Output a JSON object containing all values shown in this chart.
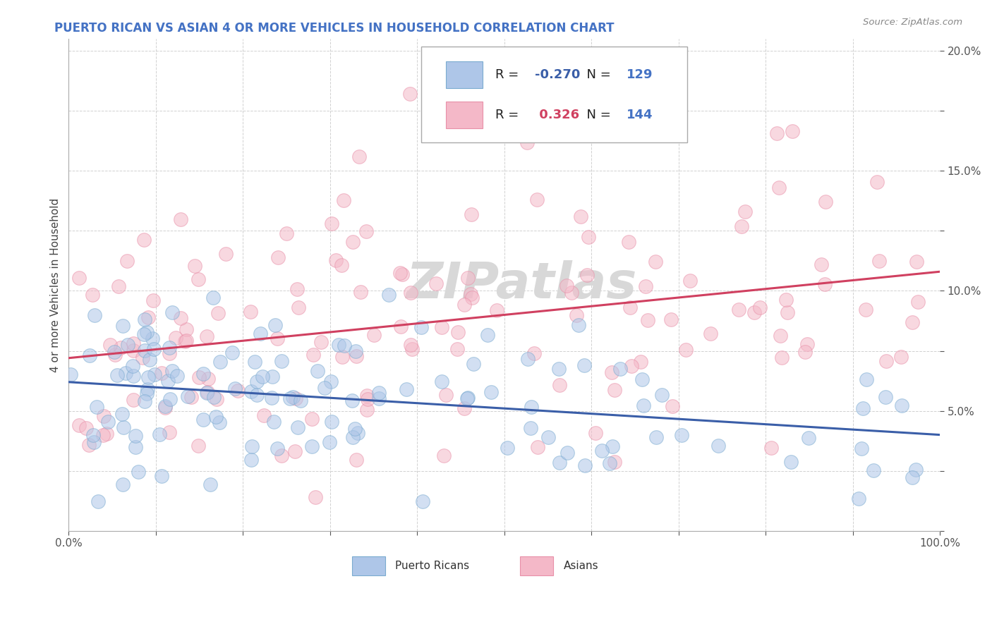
{
  "title": "PUERTO RICAN VS ASIAN 4 OR MORE VEHICLES IN HOUSEHOLD CORRELATION CHART",
  "source": "Source: ZipAtlas.com",
  "ylabel": "4 or more Vehicles in Household",
  "xlim": [
    0.0,
    1.0
  ],
  "ylim": [
    0.0,
    0.205
  ],
  "blue_R": -0.27,
  "blue_N": 129,
  "pink_R": 0.326,
  "pink_N": 144,
  "blue_face_color": "#aec6e8",
  "pink_face_color": "#f4b8c8",
  "blue_edge_color": "#7aabd0",
  "pink_edge_color": "#e890a8",
  "blue_line_color": "#3a5ea8",
  "pink_line_color": "#d04060",
  "title_color": "#4472c4",
  "source_color": "#888888",
  "watermark_color": "#d8d8d8",
  "blue_line_start_y": 0.062,
  "blue_line_end_y": 0.04,
  "pink_line_start_y": 0.072,
  "pink_line_end_y": 0.108,
  "legend_R_color": "#4472c4",
  "legend_N_color": "#4472c4",
  "legend_text_color": "#222222"
}
